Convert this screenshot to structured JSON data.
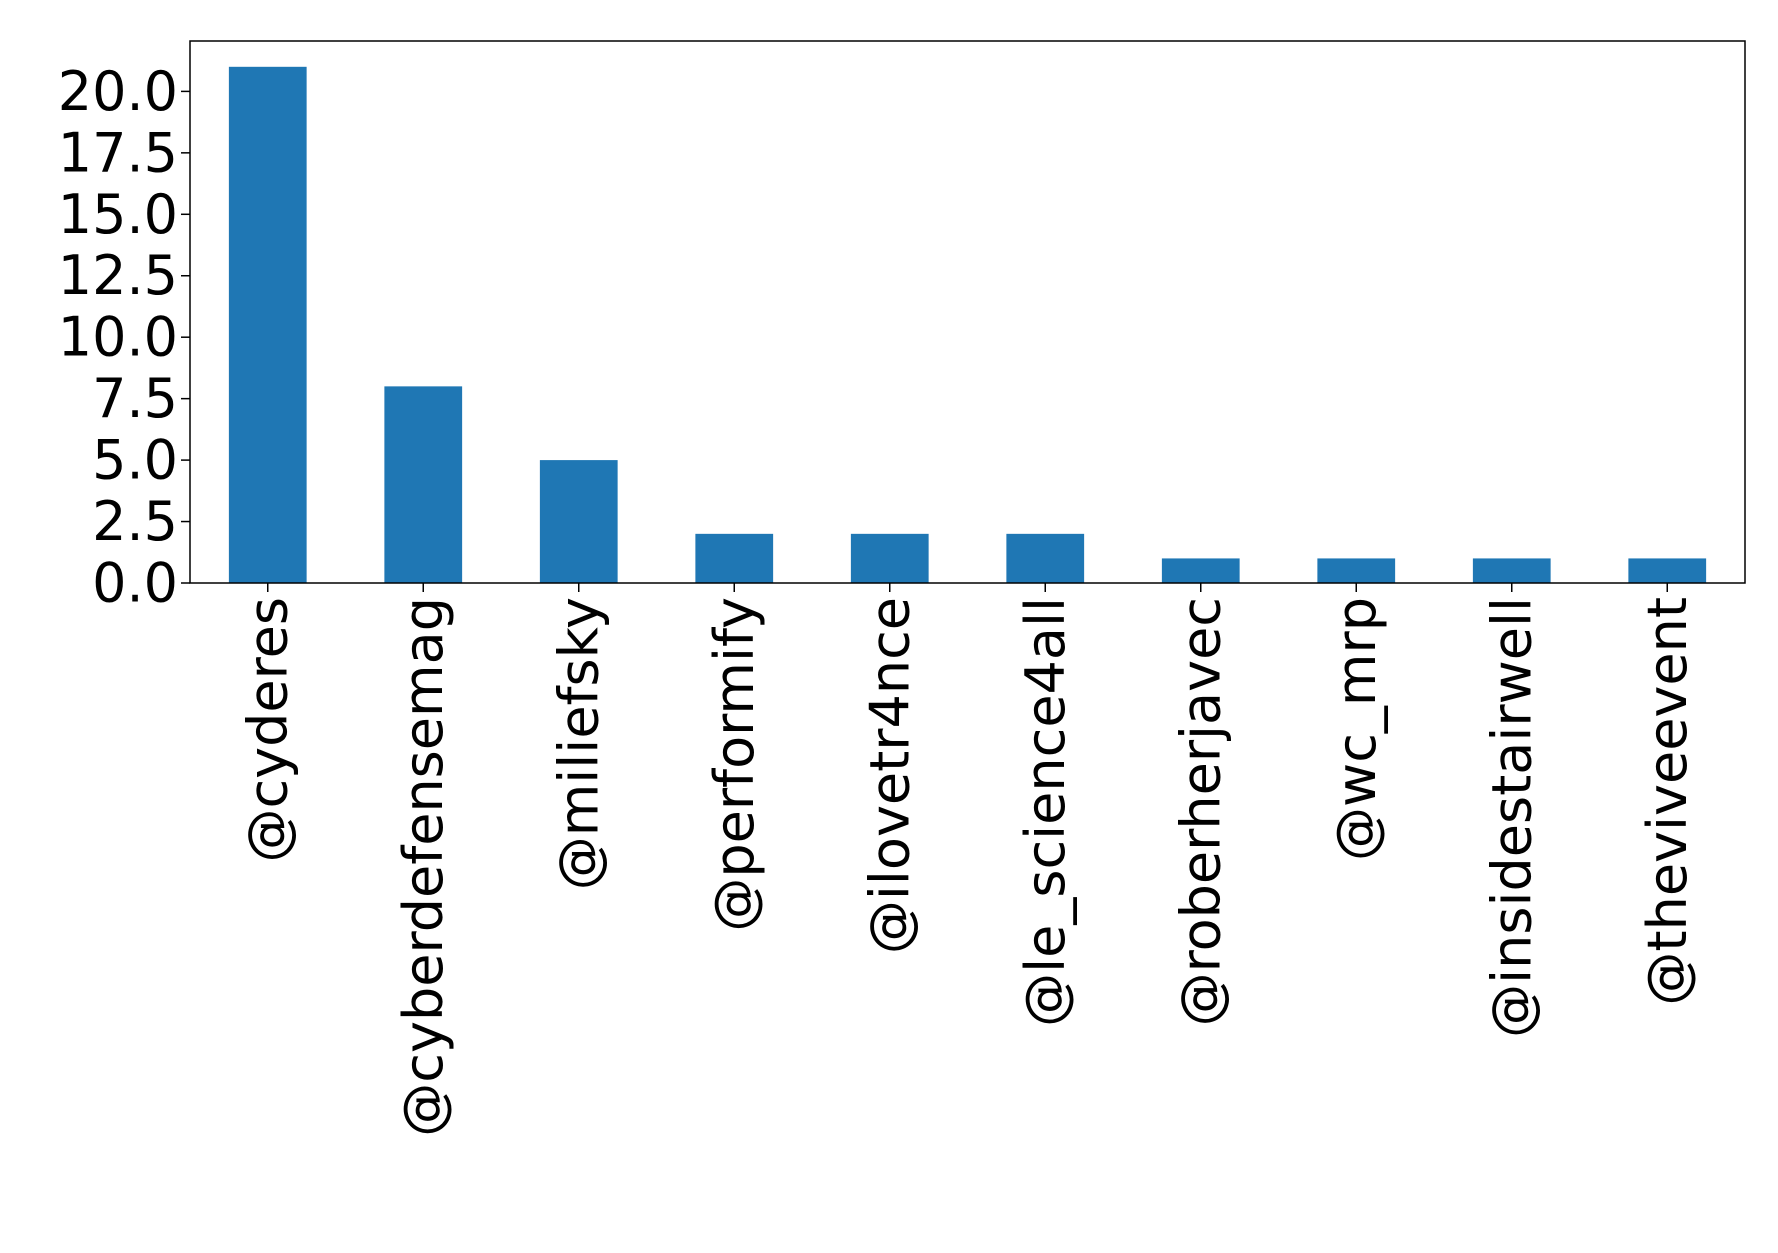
{
  "chart_data": {
    "type": "bar",
    "title": "",
    "xlabel": "",
    "ylabel": "",
    "categories": [
      "@cyderes",
      "@cyberdefensemag",
      "@miliefsky",
      "@performify",
      "@ilovetr4nce",
      "@le_science4all",
      "@roberherjavec",
      "@wc_mrp",
      "@insidestairwell",
      "@theviveevent"
    ],
    "values": [
      21,
      8,
      5,
      2,
      2,
      2,
      1,
      1,
      1,
      1
    ],
    "ylim": [
      0,
      22.05
    ],
    "yticks": [
      0.0,
      2.5,
      5.0,
      7.5,
      10.0,
      12.5,
      15.0,
      17.5,
      20.0
    ],
    "ytick_labels": [
      "0.0",
      "2.5",
      "5.0",
      "7.5",
      "10.0",
      "12.5",
      "15.0",
      "17.5",
      "20.0"
    ],
    "bar_color": "#1f77b4",
    "grid": false,
    "legend": "none"
  }
}
